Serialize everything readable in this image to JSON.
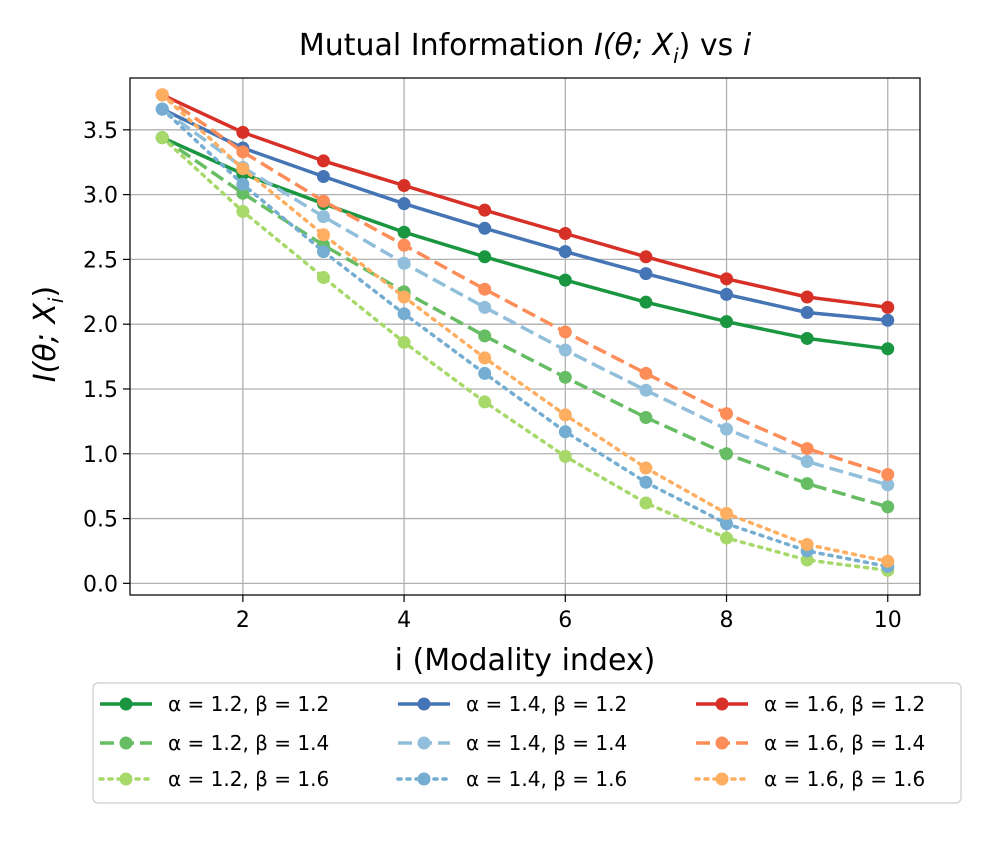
{
  "chart_data": {
    "type": "line",
    "title": "Mutual Information I(θ; Xᵢ) vs i",
    "title_parts": {
      "prefix": "Mutual Information ",
      "italic": "I(θ; X",
      "sub": "i",
      "close": ")",
      "mid": " vs ",
      "italic_end": "i"
    },
    "xlabel": "i (Modality index)",
    "ylabel": "I(θ; Xᵢ)",
    "ylabel_parts": {
      "italic": "I(θ; X",
      "sub": "i",
      "close": ")"
    },
    "xlim": [
      0.6,
      10.4
    ],
    "ylim": [
      -0.09,
      3.9
    ],
    "grid": true,
    "legend_position": "below",
    "x": [
      1,
      2,
      3,
      4,
      5,
      6,
      7,
      8,
      9,
      10
    ],
    "xticks": [
      2,
      4,
      6,
      8,
      10
    ],
    "xtick_labels": [
      "2",
      "4",
      "6",
      "8",
      "10"
    ],
    "yticks": [
      0.0,
      0.5,
      1.0,
      1.5,
      2.0,
      2.5,
      3.0,
      3.5
    ],
    "ytick_labels": [
      "0.0",
      "0.5",
      "1.0",
      "1.5",
      "2.0",
      "2.5",
      "3.0",
      "3.5"
    ],
    "series": [
      {
        "name": "α = 1.2,  β = 1.2",
        "color": "#1a9641",
        "style": "solid",
        "values": [
          3.44,
          3.16,
          2.93,
          2.71,
          2.52,
          2.34,
          2.17,
          2.02,
          1.89,
          1.81
        ]
      },
      {
        "name": "α = 1.2,  β = 1.4",
        "color": "#66bd63",
        "style": "dashed",
        "values": [
          3.44,
          3.01,
          2.61,
          2.25,
          1.91,
          1.59,
          1.28,
          1.0,
          0.77,
          0.59
        ]
      },
      {
        "name": "α = 1.2,  β = 1.6",
        "color": "#a6d96a",
        "style": "dotted",
        "values": [
          3.44,
          2.87,
          2.36,
          1.86,
          1.4,
          0.98,
          0.62,
          0.35,
          0.18,
          0.1
        ]
      },
      {
        "name": "α = 1.4,  β = 1.2",
        "color": "#4575b4",
        "style": "solid",
        "values": [
          3.66,
          3.36,
          3.14,
          2.93,
          2.74,
          2.56,
          2.39,
          2.23,
          2.09,
          2.03
        ]
      },
      {
        "name": "α = 1.4,  β = 1.4",
        "color": "#91bfdb",
        "style": "dashed",
        "values": [
          3.66,
          3.21,
          2.83,
          2.47,
          2.13,
          1.8,
          1.49,
          1.19,
          0.94,
          0.76
        ]
      },
      {
        "name": "α = 1.4,  β = 1.6",
        "color": "#74add1",
        "style": "dotted",
        "values": [
          3.66,
          3.08,
          2.56,
          2.08,
          1.62,
          1.17,
          0.78,
          0.46,
          0.25,
          0.13
        ]
      },
      {
        "name": "α = 1.6,  β = 1.2",
        "color": "#d73027",
        "style": "solid",
        "values": [
          3.77,
          3.48,
          3.26,
          3.07,
          2.88,
          2.7,
          2.52,
          2.35,
          2.21,
          2.13
        ]
      },
      {
        "name": "α = 1.6,  β = 1.4",
        "color": "#fc8d59",
        "style": "dashed",
        "values": [
          3.77,
          3.33,
          2.95,
          2.61,
          2.27,
          1.94,
          1.62,
          1.31,
          1.04,
          0.84
        ]
      },
      {
        "name": "α = 1.6,  β = 1.6",
        "color": "#fdae61",
        "style": "dotted",
        "values": [
          3.77,
          3.2,
          2.69,
          2.21,
          1.74,
          1.3,
          0.89,
          0.54,
          0.3,
          0.17
        ]
      }
    ]
  }
}
